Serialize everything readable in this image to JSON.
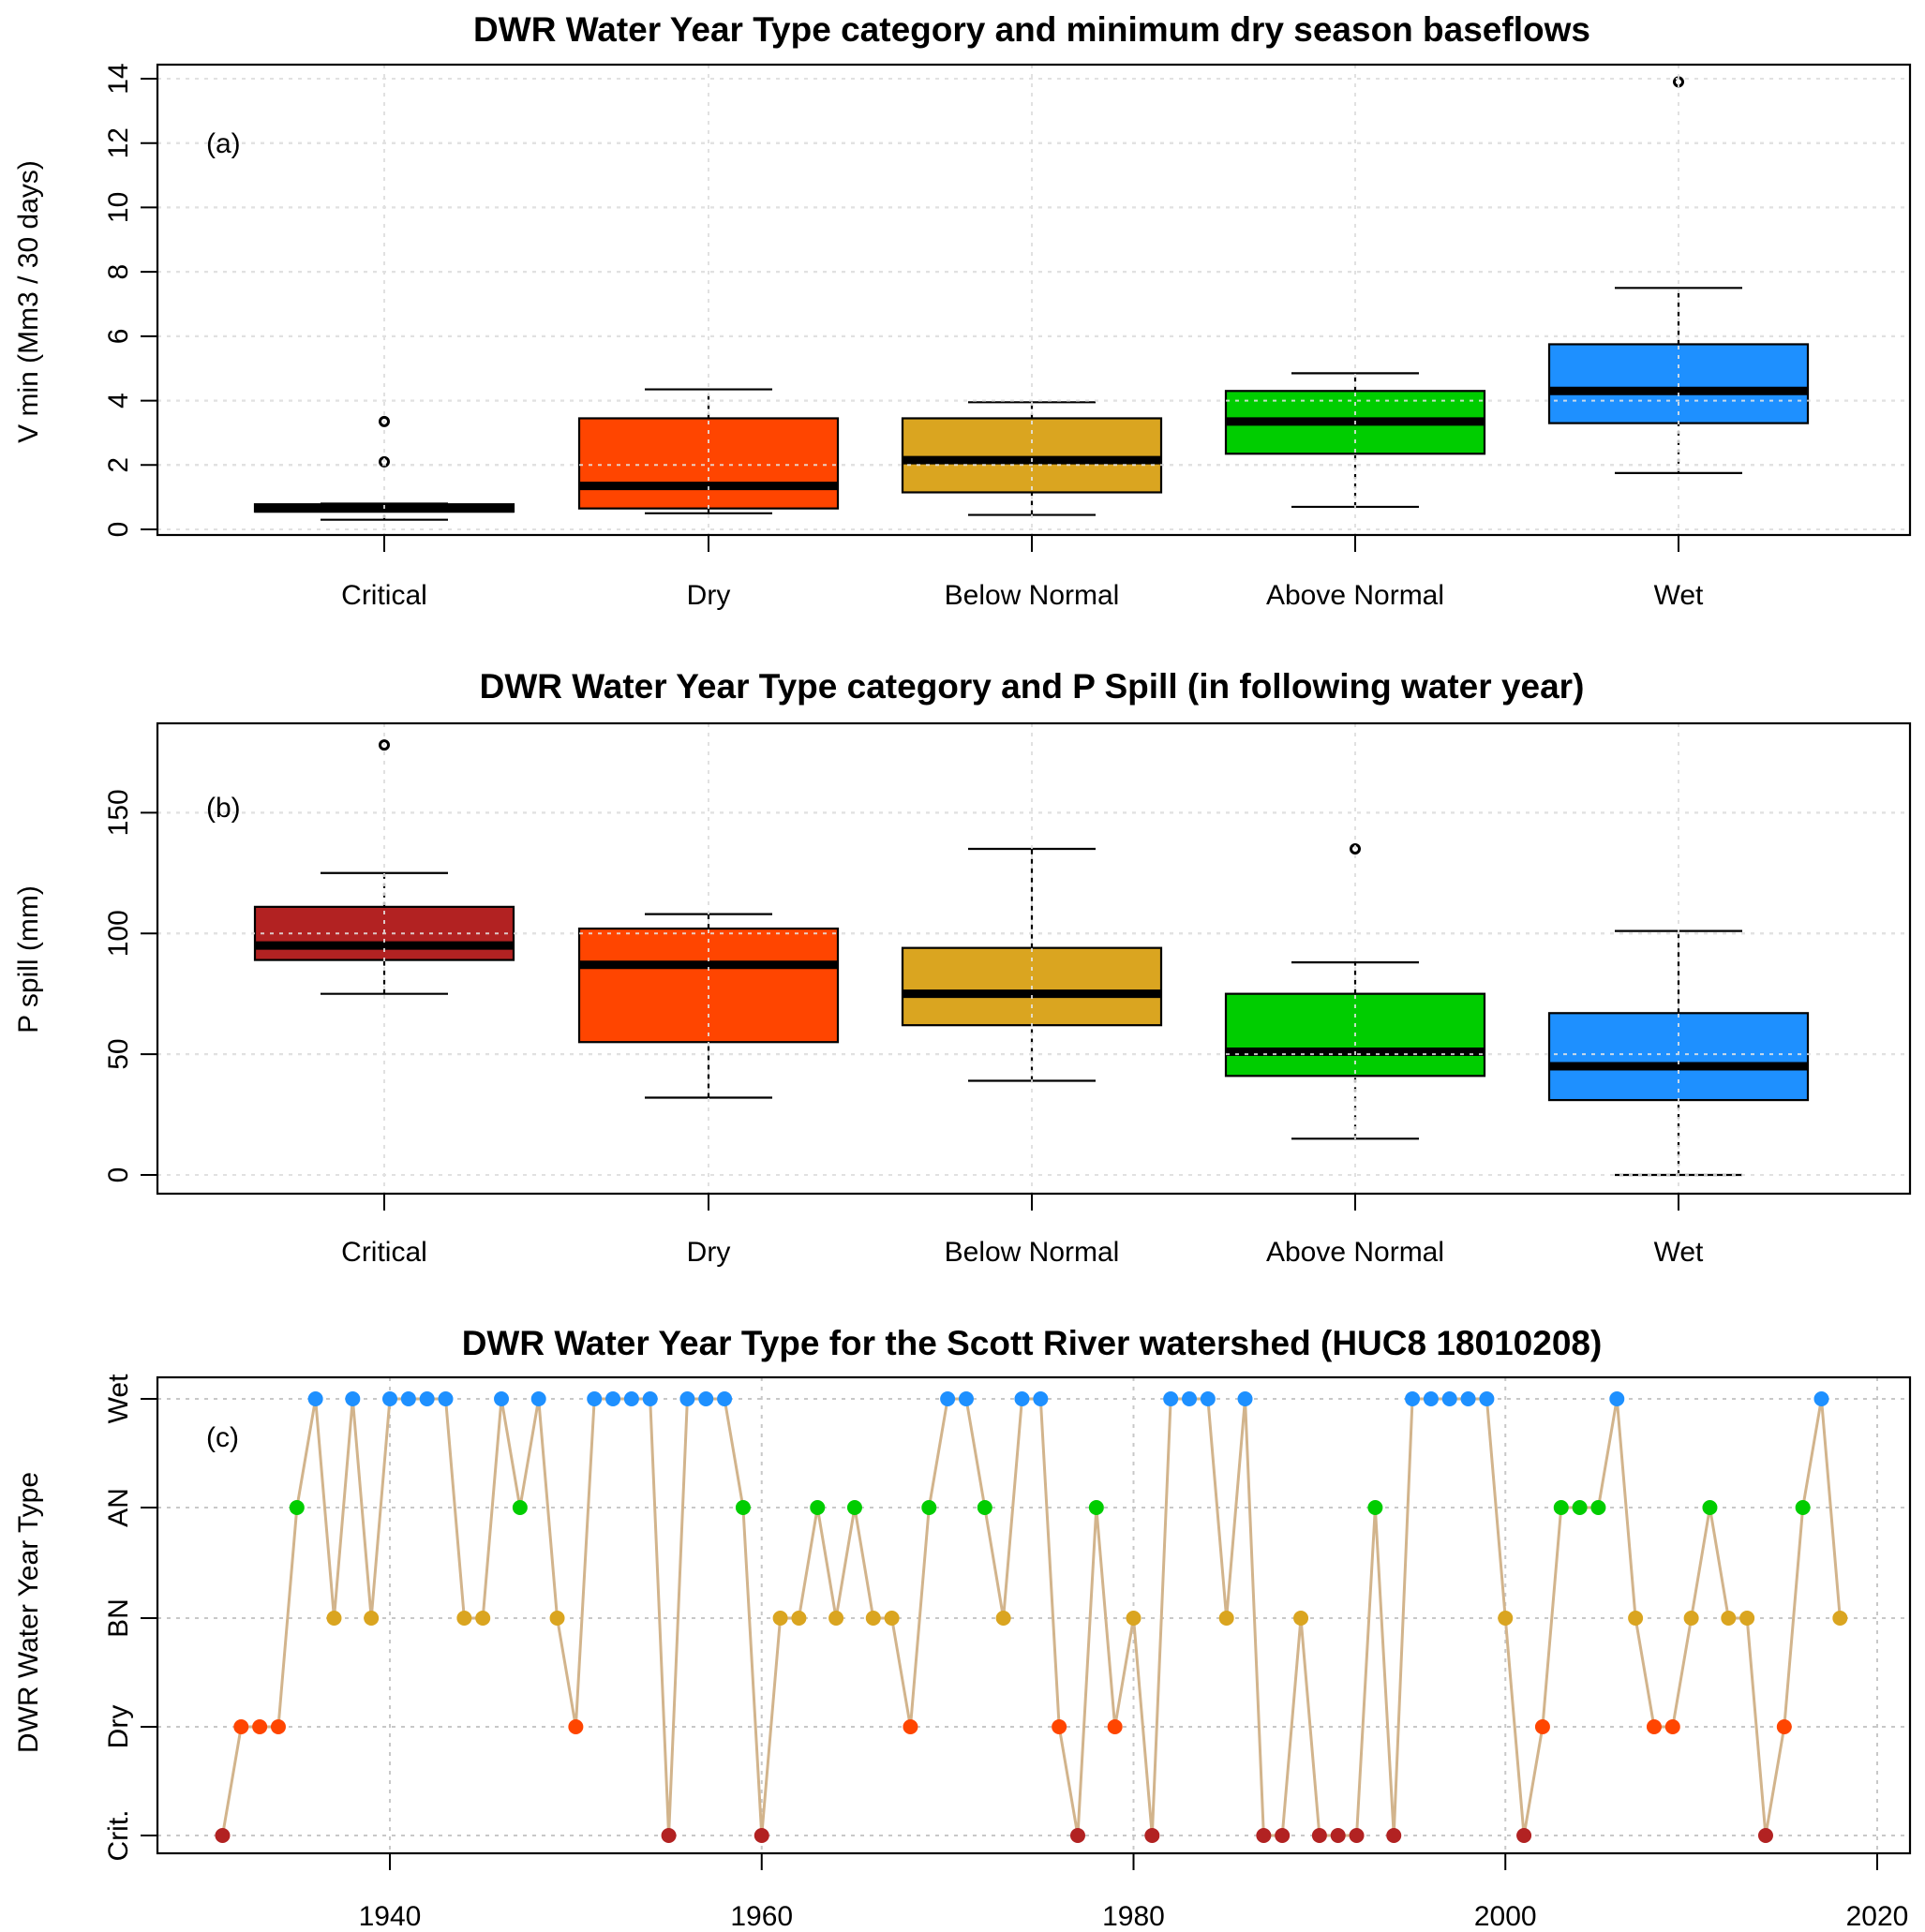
{
  "chart_data": [
    {
      "type": "box",
      "panel_label": "(a)",
      "title": "DWR Water Year Type category and minimum dry season baseflows",
      "ylabel": "V min (Mm3 / 30 days)",
      "xlabel": "",
      "ylim": [
        0,
        14
      ],
      "yticks": [
        0,
        2,
        4,
        6,
        8,
        10,
        12,
        14
      ],
      "grid": true,
      "categories": [
        "Critical",
        "Dry",
        "Below Normal",
        "Above Normal",
        "Wet"
      ],
      "colors": [
        "#000000",
        "#ff4500",
        "#daa520",
        "#00cd00",
        "#1e90ff"
      ],
      "boxes": [
        {
          "whisker_low": 0.3,
          "q1": 0.55,
          "median": 0.65,
          "q3": 0.78,
          "whisker_high": 0.8,
          "outliers": [
            2.1,
            3.35
          ]
        },
        {
          "whisker_low": 0.5,
          "q1": 0.65,
          "median": 1.35,
          "q3": 3.45,
          "whisker_high": 4.35,
          "outliers": []
        },
        {
          "whisker_low": 0.45,
          "q1": 1.15,
          "median": 2.15,
          "q3": 3.45,
          "whisker_high": 3.95,
          "outliers": []
        },
        {
          "whisker_low": 0.7,
          "q1": 2.35,
          "median": 3.35,
          "q3": 4.3,
          "whisker_high": 4.85,
          "outliers": []
        },
        {
          "whisker_low": 1.75,
          "q1": 3.3,
          "median": 4.3,
          "q3": 5.75,
          "whisker_high": 7.5,
          "outliers": [
            13.9
          ]
        }
      ]
    },
    {
      "type": "box",
      "panel_label": "(b)",
      "title": "DWR Water Year Type category and P Spill (in following water year)",
      "ylabel": "P spill (mm)",
      "xlabel": "",
      "ylim": [
        0,
        180
      ],
      "yticks": [
        0,
        50,
        100,
        150
      ],
      "grid": true,
      "categories": [
        "Critical",
        "Dry",
        "Below Normal",
        "Above Normal",
        "Wet"
      ],
      "colors": [
        "#b22222",
        "#ff4500",
        "#daa520",
        "#00cd00",
        "#1e90ff"
      ],
      "boxes": [
        {
          "whisker_low": 75,
          "q1": 89,
          "median": 95,
          "q3": 111,
          "whisker_high": 125,
          "outliers": [
            178
          ]
        },
        {
          "whisker_low": 32,
          "q1": 55,
          "median": 87,
          "q3": 102,
          "whisker_high": 108,
          "outliers": []
        },
        {
          "whisker_low": 39,
          "q1": 62,
          "median": 75,
          "q3": 94,
          "whisker_high": 135,
          "outliers": []
        },
        {
          "whisker_low": 15,
          "q1": 41,
          "median": 51,
          "q3": 75,
          "whisker_high": 88,
          "outliers": [
            135
          ]
        },
        {
          "whisker_low": 0,
          "q1": 31,
          "median": 45,
          "q3": 67,
          "whisker_high": 101,
          "outliers": []
        }
      ]
    },
    {
      "type": "line",
      "panel_label": "(c)",
      "title": "DWR Water Year Type for the Scott River watershed (HUC8 18010208)",
      "ylabel": "DWR Water Year Type",
      "xlabel": "",
      "xlim": [
        1928,
        2022
      ],
      "xticks": [
        1940,
        1960,
        1980,
        2000,
        2020
      ],
      "y_categories": [
        "Crit.",
        "Dry",
        "BN",
        "AN",
        "Wet"
      ],
      "grid": true,
      "line_color": "#d2b48c",
      "point_colors": {
        "Crit.": "#b22222",
        "Dry": "#ff4500",
        "BN": "#daa520",
        "AN": "#00cd00",
        "Wet": "#1e90ff"
      },
      "x": [
        1931,
        1932,
        1933,
        1934,
        1935,
        1936,
        1937,
        1938,
        1939,
        1940,
        1941,
        1942,
        1943,
        1944,
        1945,
        1946,
        1947,
        1948,
        1949,
        1950,
        1951,
        1952,
        1953,
        1954,
        1955,
        1956,
        1957,
        1958,
        1959,
        1960,
        1961,
        1962,
        1963,
        1964,
        1965,
        1966,
        1967,
        1968,
        1969,
        1970,
        1971,
        1972,
        1973,
        1974,
        1975,
        1976,
        1977,
        1978,
        1979,
        1980,
        1981,
        1982,
        1983,
        1984,
        1985,
        1986,
        1987,
        1988,
        1989,
        1990,
        1991,
        1992,
        1993,
        1994,
        1995,
        1996,
        1997,
        1998,
        1999,
        2000,
        2001,
        2002,
        2003,
        2004,
        2005,
        2006,
        2007,
        2008,
        2009,
        2010,
        2011,
        2012,
        2013,
        2014,
        2015,
        2016,
        2017,
        2018
      ],
      "y": [
        "Crit.",
        "Dry",
        "Dry",
        "Dry",
        "AN",
        "Wet",
        "BN",
        "Wet",
        "BN",
        "Wet",
        "Wet",
        "Wet",
        "Wet",
        "BN",
        "BN",
        "Wet",
        "AN",
        "Wet",
        "BN",
        "Dry",
        "Wet",
        "Wet",
        "Wet",
        "Wet",
        "Crit.",
        "Wet",
        "Wet",
        "Wet",
        "AN",
        "Crit.",
        "BN",
        "BN",
        "AN",
        "BN",
        "AN",
        "BN",
        "BN",
        "Dry",
        "AN",
        "Wet",
        "Wet",
        "AN",
        "BN",
        "Wet",
        "Wet",
        "Dry",
        "Crit.",
        "AN",
        "Dry",
        "BN",
        "Crit.",
        "Wet",
        "Wet",
        "Wet",
        "BN",
        "Wet",
        "Crit.",
        "Crit.",
        "BN",
        "Crit.",
        "Crit.",
        "Crit.",
        "AN",
        "Crit.",
        "Wet",
        "Wet",
        "Wet",
        "Wet",
        "Wet",
        "BN",
        "Crit.",
        "Dry",
        "AN",
        "AN",
        "AN",
        "Wet",
        "BN",
        "Dry",
        "Dry",
        "BN",
        "AN",
        "BN",
        "BN",
        "Crit.",
        "Dry",
        "AN",
        "Wet",
        "BN"
      ]
    }
  ]
}
